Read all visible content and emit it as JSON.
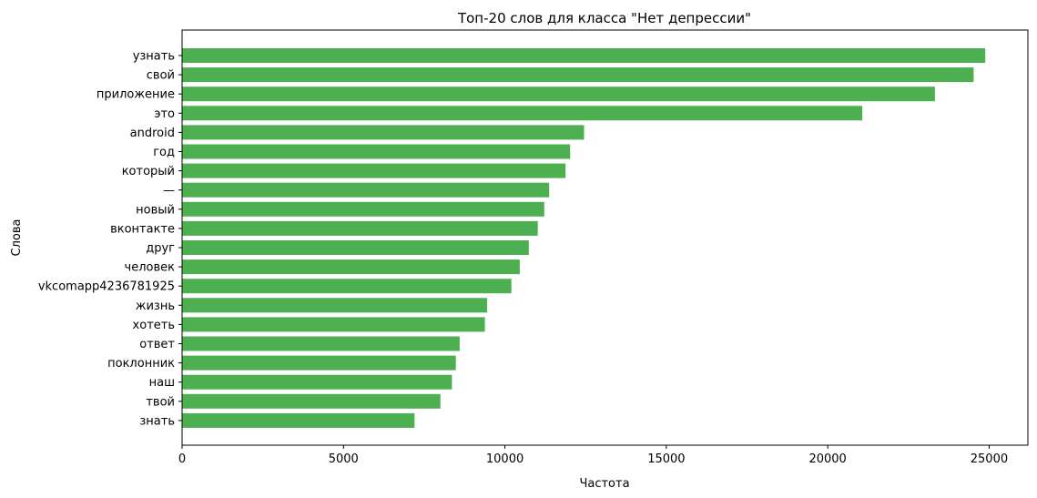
{
  "chart_data": {
    "type": "bar",
    "orientation": "horizontal",
    "title": "Топ-20 слов для класса \"Нет депрессии\"",
    "xlabel": "Частота",
    "ylabel": "Слова",
    "xlim": [
      0,
      26200
    ],
    "xticks": [
      0,
      5000,
      10000,
      15000,
      20000,
      25000
    ],
    "grid": false,
    "bar_color": "#4caf50",
    "categories": [
      "узнать",
      "свой",
      "приложение",
      "это",
      "android",
      "год",
      "который",
      "—",
      "новый",
      "вконтакте",
      "друг",
      "человек",
      "vkcomapp4236781925",
      "жизнь",
      "хотеть",
      "ответ",
      "поклонник",
      "наш",
      "твой",
      "знать"
    ],
    "values": [
      24880,
      24520,
      23320,
      21070,
      12450,
      12020,
      11880,
      11370,
      11220,
      11020,
      10740,
      10460,
      10200,
      9450,
      9380,
      8600,
      8480,
      8360,
      8000,
      7200
    ]
  }
}
